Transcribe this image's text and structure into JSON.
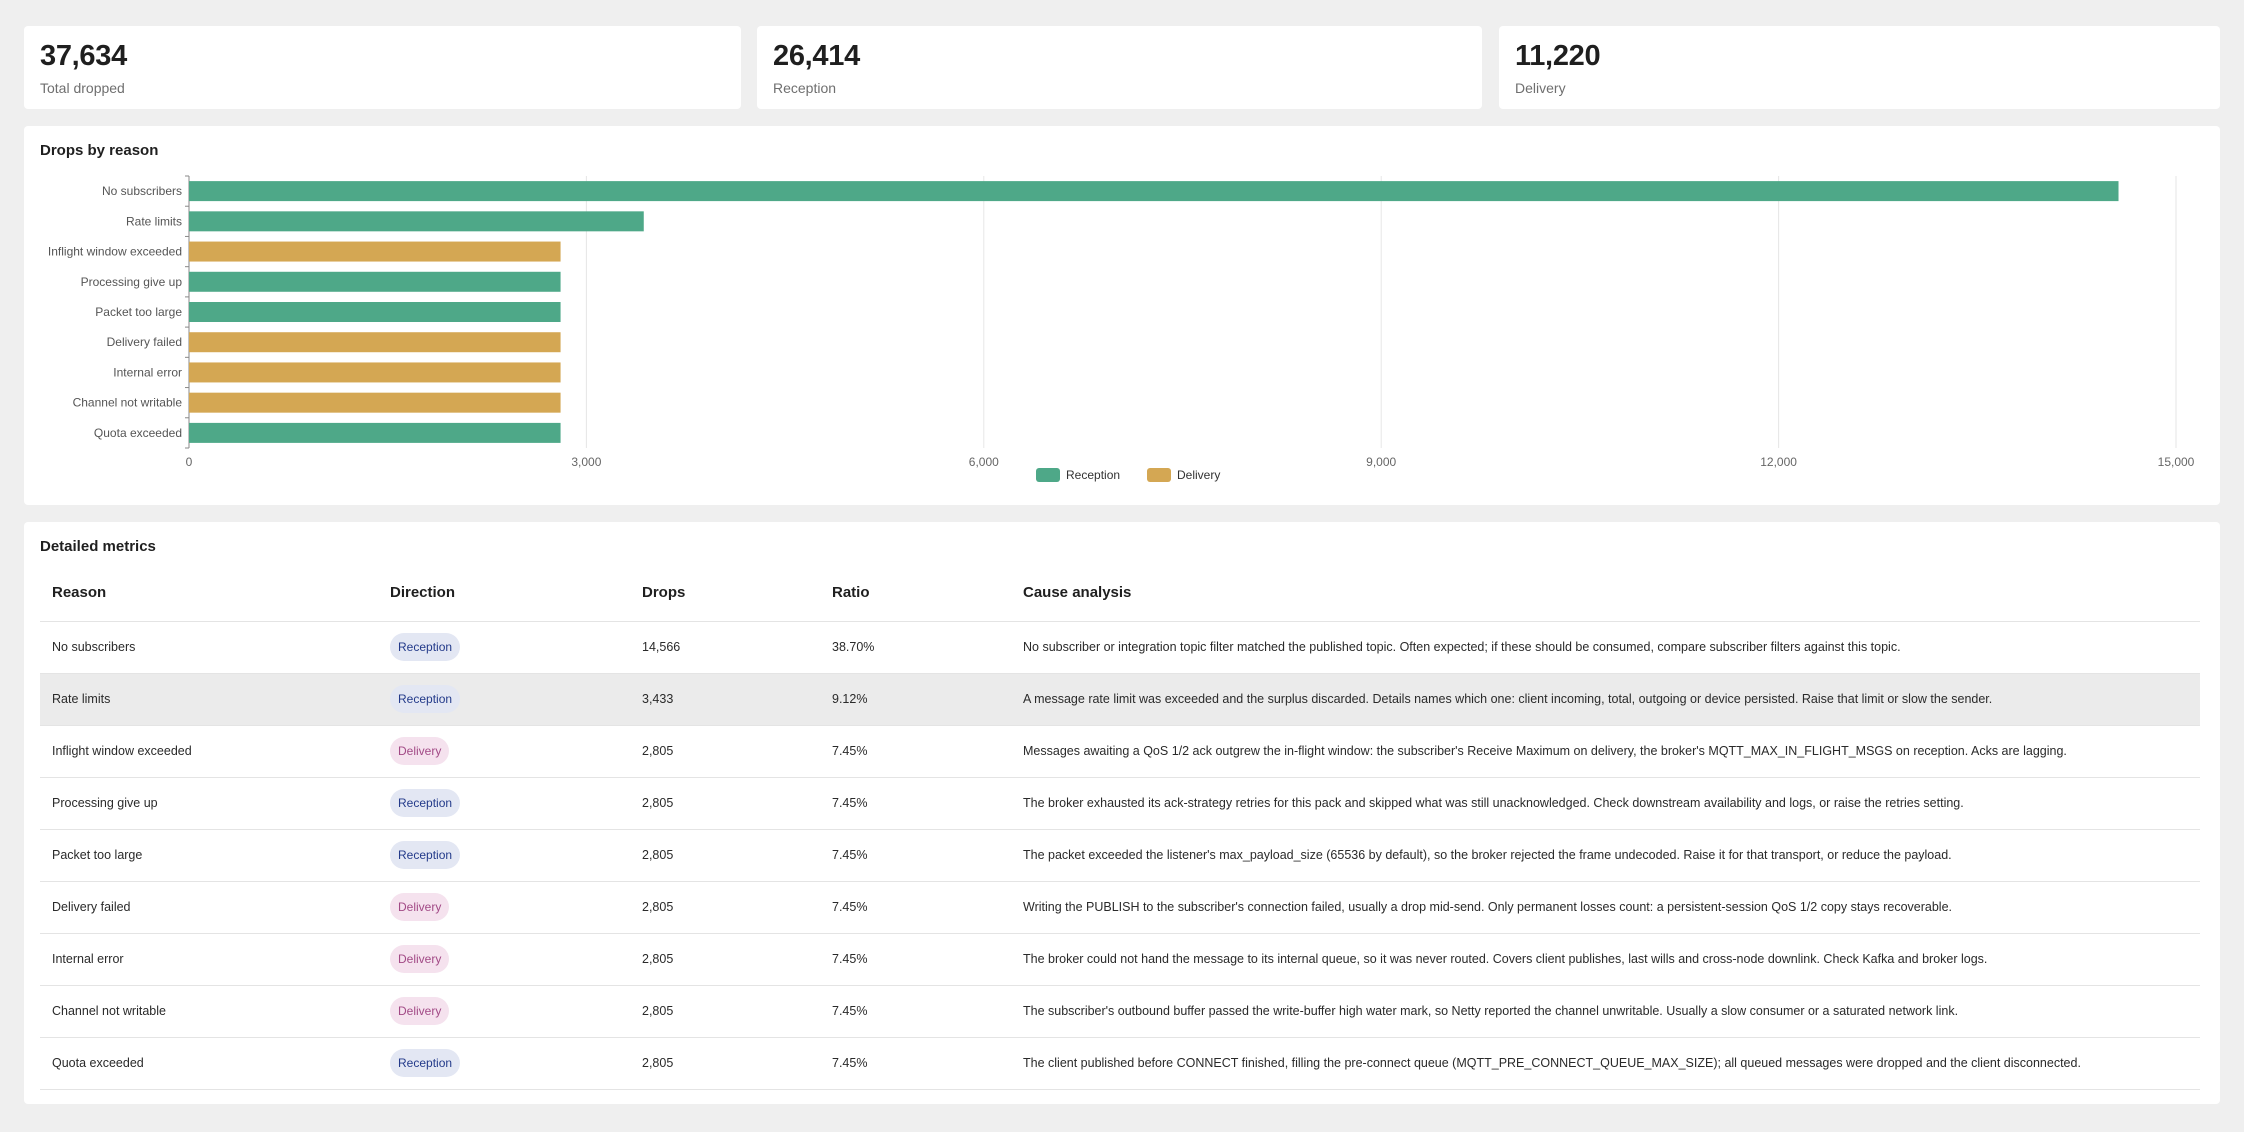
{
  "kpis": [
    {
      "value": "37,634",
      "label": "Total dropped"
    },
    {
      "value": "26,414",
      "label": "Reception"
    },
    {
      "value": "11,220",
      "label": "Delivery"
    }
  ],
  "chart_card": {
    "title": "Drops by reason"
  },
  "colors": {
    "reception": "#4ea888",
    "delivery": "#d4a753"
  },
  "chart_data": {
    "type": "bar",
    "orientation": "horizontal",
    "categories": [
      "No subscribers",
      "Rate limits",
      "Inflight window exceeded",
      "Processing give up",
      "Packet too large",
      "Delivery failed",
      "Internal error",
      "Channel not writable",
      "Quota exceeded"
    ],
    "values": [
      14566,
      3433,
      2805,
      2805,
      2805,
      2805,
      2805,
      2805,
      2805
    ],
    "directions": [
      "Reception",
      "Reception",
      "Delivery",
      "Reception",
      "Reception",
      "Delivery",
      "Delivery",
      "Delivery",
      "Reception"
    ],
    "xlim": [
      0,
      15000
    ],
    "xticks": [
      0,
      3000,
      6000,
      9000,
      12000,
      15000
    ],
    "xtick_labels": [
      "0",
      "3,000",
      "6,000",
      "9,000",
      "12,000",
      "15,000"
    ],
    "legend": [
      {
        "name": "Reception",
        "color": "#4ea888"
      },
      {
        "name": "Delivery",
        "color": "#d4a753"
      }
    ],
    "legend_position": "bottom-center",
    "grid": true
  },
  "table_card": {
    "title": "Detailed metrics",
    "headers": [
      "Reason",
      "Direction",
      "Drops",
      "Ratio",
      "Cause analysis"
    ],
    "rows": [
      {
        "reason": "No subscribers",
        "direction": "Reception",
        "drops": "14,566",
        "ratio": "38.70%",
        "cause": "No subscriber or integration topic filter matched the published topic. Often expected; if these should be consumed, compare subscriber filters against this topic."
      },
      {
        "reason": "Rate limits",
        "direction": "Reception",
        "drops": "3,433",
        "ratio": "9.12%",
        "cause": "A message rate limit was exceeded and the surplus discarded. Details names which one: client incoming, total, outgoing or device persisted. Raise that limit or slow the sender."
      },
      {
        "reason": "Inflight window exceeded",
        "direction": "Delivery",
        "drops": "2,805",
        "ratio": "7.45%",
        "cause": "Messages awaiting a QoS 1/2 ack outgrew the in-flight window: the subscriber's Receive Maximum on delivery, the broker's MQTT_MAX_IN_FLIGHT_MSGS on reception. Acks are lagging."
      },
      {
        "reason": "Processing give up",
        "direction": "Reception",
        "drops": "2,805",
        "ratio": "7.45%",
        "cause": "The broker exhausted its ack-strategy retries for this pack and skipped what was still unacknowledged. Check downstream availability and logs, or raise the retries setting."
      },
      {
        "reason": "Packet too large",
        "direction": "Reception",
        "drops": "2,805",
        "ratio": "7.45%",
        "cause": "The packet exceeded the listener's max_payload_size (65536 by default), so the broker rejected the frame undecoded. Raise it for that transport, or reduce the payload."
      },
      {
        "reason": "Delivery failed",
        "direction": "Delivery",
        "drops": "2,805",
        "ratio": "7.45%",
        "cause": "Writing the PUBLISH to the subscriber's connection failed, usually a drop mid-send. Only permanent losses count: a persistent-session QoS 1/2 copy stays recoverable."
      },
      {
        "reason": "Internal error",
        "direction": "Delivery",
        "drops": "2,805",
        "ratio": "7.45%",
        "cause": "The broker could not hand the message to its internal queue, so it was never routed. Covers client publishes, last wills and cross-node downlink. Check Kafka and broker logs."
      },
      {
        "reason": "Channel not writable",
        "direction": "Delivery",
        "drops": "2,805",
        "ratio": "7.45%",
        "cause": "The subscriber's outbound buffer passed the write-buffer high water mark, so Netty reported the channel unwritable. Usually a slow consumer or a saturated network link."
      },
      {
        "reason": "Quota exceeded",
        "direction": "Reception",
        "drops": "2,805",
        "ratio": "7.45%",
        "cause": "The client published before CONNECT finished, filling the pre-connect queue (MQTT_PRE_CONNECT_QUEUE_MAX_SIZE); all queued messages were dropped and the client disconnected."
      }
    ]
  }
}
